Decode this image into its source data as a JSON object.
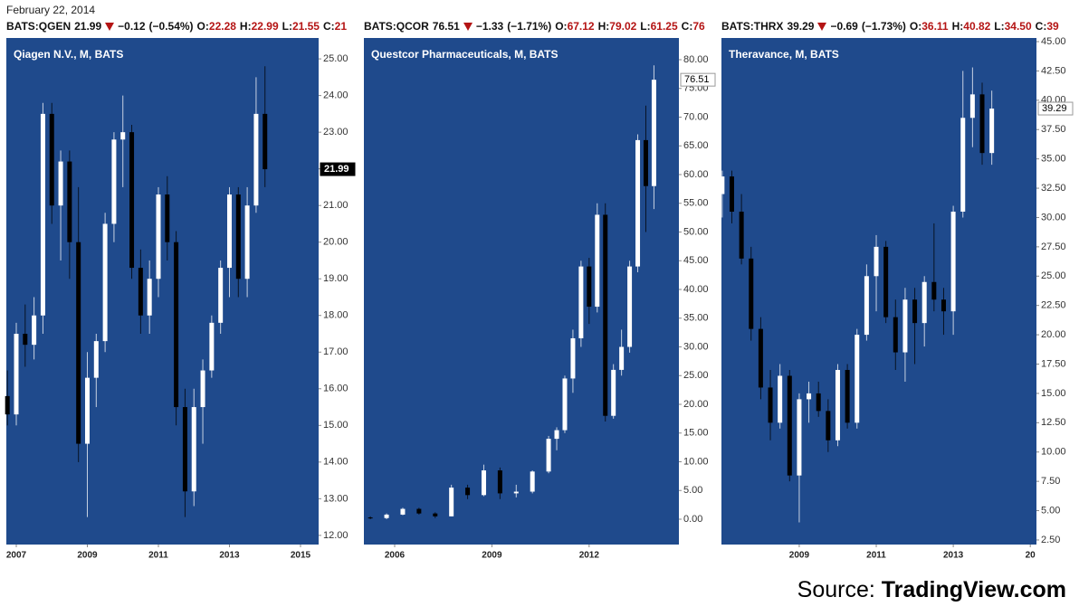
{
  "header": {
    "date": "February 22, 2014",
    "labels": {
      "open": "O:",
      "high": "H:",
      "low": "L:",
      "close": "C:"
    },
    "tickers": [
      {
        "symbol": "BATS:QGEN",
        "last": "21.99",
        "change": "−0.12",
        "change_pct": "(−0.54%)",
        "open": "22.28",
        "high": "22.99",
        "low": "21.55",
        "close": "21"
      },
      {
        "symbol": "BATS:QCOR",
        "last": "76.51",
        "change": "−1.33",
        "change_pct": "(−1.71%)",
        "open": "67.12",
        "high": "79.02",
        "low": "61.25",
        "close": "76"
      },
      {
        "symbol": "BATS:THRX",
        "last": "39.29",
        "change": "−0.69",
        "change_pct": "(−1.73%)",
        "open": "36.11",
        "high": "40.82",
        "low": "34.50",
        "close": "39"
      }
    ]
  },
  "source": {
    "label": "Source:",
    "name": "TradingView.com"
  },
  "chart_data": [
    {
      "type": "candlestick",
      "title": "Qiagen N.V., M, BATS",
      "background": "#1f4a8c",
      "up_color": "#ffffff",
      "down_color": "#000000",
      "x": [
        2006.75,
        2007.0,
        2007.25,
        2007.5,
        2007.75,
        2008.0,
        2008.25,
        2008.5,
        2008.75,
        2009.0,
        2009.25,
        2009.5,
        2009.75,
        2010.0,
        2010.25,
        2010.5,
        2010.75,
        2011.0,
        2011.25,
        2011.5,
        2011.75,
        2012.0,
        2012.25,
        2012.5,
        2012.75,
        2013.0,
        2013.25,
        2013.5,
        2013.75,
        2014.0
      ],
      "open": [
        15.8,
        15.3,
        17.5,
        17.2,
        18.0,
        23.5,
        21.0,
        22.2,
        20.0,
        14.5,
        16.3,
        17.3,
        20.5,
        22.8,
        23.0,
        19.3,
        18.0,
        19.0,
        21.3,
        20.0,
        15.5,
        13.2,
        15.5,
        16.5,
        17.8,
        19.3,
        21.3,
        19.0,
        21.0,
        23.5
      ],
      "high": [
        16.5,
        17.8,
        18.3,
        18.5,
        23.8,
        23.8,
        22.5,
        22.5,
        21.5,
        17.0,
        17.5,
        20.8,
        23.0,
        24.0,
        23.2,
        19.8,
        19.5,
        21.5,
        21.8,
        20.3,
        16.0,
        16.0,
        16.8,
        18.0,
        19.5,
        21.5,
        21.5,
        21.5,
        24.5,
        24.8
      ],
      "low": [
        15.0,
        15.0,
        16.6,
        16.8,
        17.5,
        20.5,
        19.5,
        19.0,
        14.0,
        12.5,
        15.5,
        17.0,
        20.0,
        21.5,
        19.0,
        17.5,
        17.5,
        18.5,
        19.5,
        15.0,
        12.5,
        12.8,
        14.5,
        16.3,
        17.5,
        18.5,
        18.5,
        18.5,
        20.8,
        21.5
      ],
      "close": [
        15.3,
        17.5,
        17.2,
        18.0,
        23.5,
        21.0,
        22.2,
        20.0,
        14.5,
        16.3,
        17.3,
        20.5,
        22.8,
        23.0,
        19.3,
        18.0,
        19.0,
        21.3,
        20.0,
        15.5,
        13.2,
        15.5,
        16.5,
        17.8,
        19.3,
        21.3,
        19.0,
        21.0,
        23.5,
        21.99
      ],
      "last_price": 21.99,
      "xlim": [
        2006.72,
        2015.51
      ],
      "xticks": [
        2007,
        2009,
        2011,
        2013,
        2015
      ],
      "ylim": [
        11.75,
        25.57
      ],
      "yticks": [
        {
          "value": 12,
          "label": "12.00"
        },
        {
          "value": 13,
          "label": "13.00"
        },
        {
          "value": 14,
          "label": "14.00"
        },
        {
          "value": 15,
          "label": "15.00"
        },
        {
          "value": 16,
          "label": "16.00"
        },
        {
          "value": 17,
          "label": "17.00"
        },
        {
          "value": 18,
          "label": "18.00"
        },
        {
          "value": 19,
          "label": "19.00"
        },
        {
          "value": 20,
          "label": "20.00"
        },
        {
          "value": 21,
          "label": "21.00"
        },
        {
          "value": 22,
          "label": "22.00"
        },
        {
          "value": 23,
          "label": "23.00"
        },
        {
          "value": 24,
          "label": "24.00"
        },
        {
          "value": 25,
          "label": "25.00"
        }
      ]
    },
    {
      "type": "candlestick",
      "title": "Questcor Pharmaceuticals, M, BATS",
      "background": "#1f4a8c",
      "up_color": "#ffffff",
      "down_color": "#000000",
      "x": [
        2005.25,
        2005.75,
        2006.25,
        2006.75,
        2007.25,
        2007.75,
        2008.25,
        2008.75,
        2009.25,
        2009.75,
        2010.25,
        2010.75,
        2011.0,
        2011.25,
        2011.5,
        2011.75,
        2012.0,
        2012.25,
        2012.5,
        2012.75,
        2013.0,
        2013.25,
        2013.5,
        2013.75,
        2014.0
      ],
      "open": [
        0.3,
        0.2,
        0.8,
        1.8,
        1.0,
        0.5,
        5.5,
        4.2,
        8.5,
        4.5,
        4.8,
        8.3,
        14.0,
        15.5,
        24.5,
        31.5,
        44.0,
        37.0,
        53.0,
        18.0,
        26.0,
        30.0,
        44.0,
        66.0,
        58.0
      ],
      "high": [
        0.5,
        1.0,
        2.0,
        2.0,
        1.2,
        6.0,
        6.0,
        9.5,
        9.0,
        6.0,
        8.5,
        14.5,
        16.0,
        25.0,
        33.0,
        45.0,
        45.5,
        55.0,
        55.0,
        27.0,
        33.0,
        45.0,
        67.0,
        72.0,
        79.02
      ],
      "low": [
        0.0,
        0.0,
        0.7,
        0.8,
        0.2,
        0.5,
        3.5,
        4.0,
        3.5,
        3.8,
        4.5,
        8.0,
        12.0,
        15.0,
        22.0,
        30.0,
        34.0,
        36.0,
        17.0,
        17.5,
        25.0,
        29.0,
        43.0,
        50.0,
        54.0
      ],
      "close": [
        0.2,
        0.8,
        1.8,
        1.0,
        0.5,
        5.5,
        4.2,
        8.5,
        4.5,
        4.8,
        8.3,
        14.0,
        15.5,
        24.5,
        31.5,
        44.0,
        37.0,
        53.0,
        18.0,
        26.0,
        30.0,
        44.0,
        66.0,
        58.0,
        76.51
      ],
      "last_price": 76.51,
      "xlim": [
        2005.05,
        2014.77
      ],
      "xticks": [
        2006,
        2009,
        2012
      ],
      "ylim": [
        -4.41,
        83.78
      ],
      "yticks": [
        {
          "value": 0,
          "label": "0.00"
        },
        {
          "value": 5,
          "label": "5.00"
        },
        {
          "value": 10,
          "label": "10.00"
        },
        {
          "value": 15,
          "label": "15.00"
        },
        {
          "value": 20,
          "label": "20.00"
        },
        {
          "value": 25,
          "label": "25.00"
        },
        {
          "value": 30,
          "label": "30.00"
        },
        {
          "value": 35,
          "label": "35.00"
        },
        {
          "value": 40,
          "label": "40.00"
        },
        {
          "value": 45,
          "label": "45.00"
        },
        {
          "value": 50,
          "label": "50.00"
        },
        {
          "value": 55,
          "label": "55.00"
        },
        {
          "value": 60,
          "label": "60.00"
        },
        {
          "value": 65,
          "label": "65.00"
        },
        {
          "value": 70,
          "label": "70.00"
        },
        {
          "value": 75,
          "label": "75.00"
        },
        {
          "value": 80,
          "label": "80.00"
        }
      ]
    },
    {
      "type": "candlestick",
      "title": "Theravance, M, BATS",
      "background": "#1f4a8c",
      "up_color": "#ffffff",
      "down_color": "#000000",
      "x": [
        2007.0,
        2007.25,
        2007.5,
        2007.75,
        2008.0,
        2008.25,
        2008.5,
        2008.75,
        2009.0,
        2009.25,
        2009.5,
        2009.75,
        2010.0,
        2010.25,
        2010.5,
        2010.75,
        2011.0,
        2011.25,
        2011.5,
        2011.75,
        2012.0,
        2012.25,
        2012.5,
        2012.75,
        2013.0,
        2013.25,
        2013.5,
        2013.75,
        2014.0
      ],
      "open": [
        32.0,
        33.5,
        30.5,
        26.5,
        20.5,
        15.5,
        12.5,
        16.5,
        8.0,
        14.5,
        15.0,
        13.5,
        11.0,
        17.0,
        12.5,
        20.0,
        25.0,
        27.5,
        21.5,
        18.5,
        23.0,
        21.0,
        24.5,
        23.0,
        22.0,
        30.5,
        38.5,
        40.5,
        35.5
      ],
      "high": [
        34.0,
        34.0,
        32.0,
        27.5,
        21.5,
        17.0,
        17.5,
        17.0,
        15.0,
        16.0,
        16.0,
        14.5,
        17.5,
        17.5,
        20.5,
        26.0,
        28.5,
        28.0,
        23.0,
        24.0,
        24.0,
        25.0,
        29.5,
        24.0,
        31.0,
        42.5,
        42.8,
        41.5,
        40.82
      ],
      "low": [
        30.0,
        29.5,
        26.0,
        19.5,
        14.5,
        11.0,
        12.0,
        7.5,
        4.0,
        12.5,
        13.0,
        10.0,
        10.5,
        12.0,
        12.0,
        19.5,
        22.0,
        21.0,
        17.0,
        16.0,
        17.5,
        19.0,
        22.0,
        20.0,
        20.0,
        30.0,
        36.0,
        34.5,
        34.5
      ],
      "close": [
        33.5,
        30.5,
        26.5,
        20.5,
        15.5,
        12.5,
        16.5,
        8.0,
        14.5,
        15.0,
        13.5,
        11.0,
        17.0,
        12.5,
        20.0,
        25.0,
        27.5,
        21.5,
        18.5,
        23.0,
        21.0,
        24.5,
        23.0,
        22.0,
        30.5,
        38.5,
        40.5,
        35.5,
        39.29
      ],
      "last_price": 39.29,
      "xlim": [
        2006.98,
        2015.16
      ],
      "xticks": [
        2009,
        2011,
        2013,
        {
          "value": 2015,
          "label": "20"
        }
      ],
      "ylim": [
        2.11,
        45.31
      ],
      "yticks": [
        {
          "value": 2.5,
          "label": "2.50"
        },
        {
          "value": 5,
          "label": "5.00"
        },
        {
          "value": 7.5,
          "label": "7.50"
        },
        {
          "value": 10,
          "label": "10.00"
        },
        {
          "value": 12.5,
          "label": "12.50"
        },
        {
          "value": 15,
          "label": "15.00"
        },
        {
          "value": 17.5,
          "label": "17.50"
        },
        {
          "value": 20,
          "label": "20.00"
        },
        {
          "value": 22.5,
          "label": "22.50"
        },
        {
          "value": 25,
          "label": "25.00"
        },
        {
          "value": 27.5,
          "label": "27.50"
        },
        {
          "value": 30,
          "label": "30.00"
        },
        {
          "value": 32.5,
          "label": "32.50"
        },
        {
          "value": 35,
          "label": "35.00"
        },
        {
          "value": 37.5,
          "label": "37.50"
        },
        {
          "value": 40,
          "label": "40.00"
        },
        {
          "value": 42.5,
          "label": "42.50"
        },
        {
          "value": 45,
          "label": "45.00"
        }
      ]
    }
  ]
}
